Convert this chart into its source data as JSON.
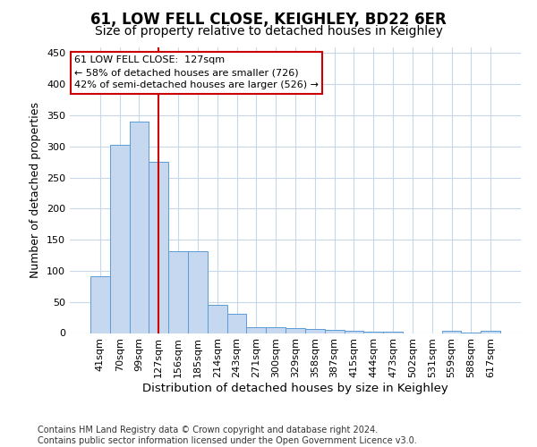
{
  "title": "61, LOW FELL CLOSE, KEIGHLEY, BD22 6ER",
  "subtitle": "Size of property relative to detached houses in Keighley",
  "xlabel": "Distribution of detached houses by size in Keighley",
  "ylabel": "Number of detached properties",
  "categories": [
    "41sqm",
    "70sqm",
    "99sqm",
    "127sqm",
    "156sqm",
    "185sqm",
    "214sqm",
    "243sqm",
    "271sqm",
    "300sqm",
    "329sqm",
    "358sqm",
    "387sqm",
    "415sqm",
    "444sqm",
    "473sqm",
    "502sqm",
    "531sqm",
    "559sqm",
    "588sqm",
    "617sqm"
  ],
  "values": [
    91,
    303,
    340,
    276,
    131,
    131,
    46,
    31,
    10,
    10,
    8,
    7,
    5,
    4,
    2,
    2,
    0,
    0,
    4,
    1,
    3
  ],
  "bar_color": "#c5d8f0",
  "bar_edge_color": "#5b9bd5",
  "highlight_index": 3,
  "highlight_line_color": "#cc0000",
  "annotation_line1": "61 LOW FELL CLOSE:  127sqm",
  "annotation_line2": "← 58% of detached houses are smaller (726)",
  "annotation_line3": "42% of semi-detached houses are larger (526) →",
  "annotation_box_color": "#ffffff",
  "annotation_box_edge_color": "#cc0000",
  "ylim": [
    0,
    460
  ],
  "yticks": [
    0,
    50,
    100,
    150,
    200,
    250,
    300,
    350,
    400,
    450
  ],
  "footer_text": "Contains HM Land Registry data © Crown copyright and database right 2024.\nContains public sector information licensed under the Open Government Licence v3.0.",
  "background_color": "#ffffff",
  "grid_color": "#c8d8e8",
  "title_fontsize": 12,
  "subtitle_fontsize": 10,
  "xlabel_fontsize": 9.5,
  "ylabel_fontsize": 9,
  "tick_fontsize": 8,
  "footer_fontsize": 7,
  "annotation_fontsize": 8
}
